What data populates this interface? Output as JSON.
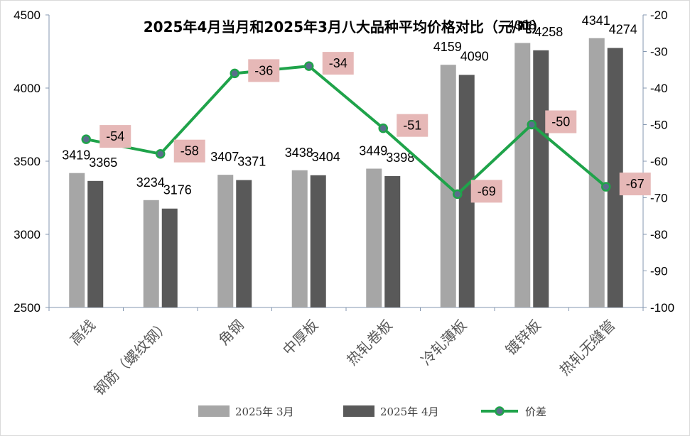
{
  "chart_data": {
    "type": "bar",
    "title": "2025年4月当月和2025年3月八大品种平均价格对比（元/吨）",
    "categories": [
      "高线",
      "钢筋（螺纹钢）",
      "角钢",
      "中厚板",
      "热轧卷板",
      "冷轧薄板",
      "镀锌板",
      "热轧无缝管"
    ],
    "series": [
      {
        "name": "2025年 3月",
        "type": "bar",
        "axis": "left",
        "color": "#a6a6a6",
        "values": [
          3419,
          3234,
          3407,
          3438,
          3449,
          4159,
          4308,
          4341
        ]
      },
      {
        "name": "2025年 4月",
        "type": "bar",
        "axis": "left",
        "color": "#595959",
        "values": [
          3365,
          3176,
          3371,
          3404,
          3398,
          4090,
          4258,
          4274
        ]
      },
      {
        "name": "价差",
        "type": "line",
        "axis": "right",
        "color": "#1fa34a",
        "marker_color": "#5a6e8c",
        "values": [
          -54,
          -58,
          -36,
          -34,
          -51,
          -69,
          -50,
          -67
        ]
      }
    ],
    "y_left": {
      "min": 2500,
      "max": 4500,
      "ticks": [
        2500,
        3000,
        3500,
        4000,
        4500
      ]
    },
    "y_right": {
      "min": -100,
      "max": -20,
      "ticks": [
        -100,
        -90,
        -80,
        -70,
        -60,
        -50,
        -40,
        -30,
        -20
      ]
    },
    "label_bg": "#e6b8b7",
    "legend_position": "bottom",
    "grid": false
  }
}
